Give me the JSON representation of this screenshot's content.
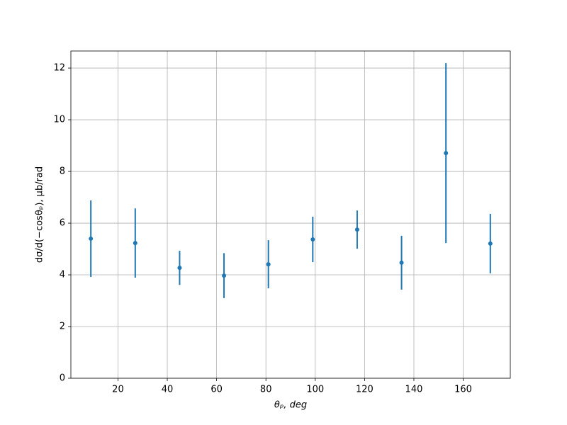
{
  "chart_data": {
    "type": "errorbar",
    "xlabel": "θₚ, deg",
    "ylabel": "dσ/d(−cosθₚ), μb/rad",
    "x": [
      9,
      27,
      45,
      63,
      81,
      99,
      117,
      135,
      153,
      171
    ],
    "values": [
      5.4,
      5.23,
      4.27,
      3.97,
      4.41,
      5.37,
      5.75,
      4.47,
      8.71,
      5.21
    ],
    "errors": [
      1.48,
      1.34,
      0.66,
      0.87,
      0.93,
      0.88,
      0.74,
      1.04,
      3.48,
      1.15
    ],
    "color": "#1f77b4",
    "xlim": [
      0.9,
      179.1
    ],
    "ylim": [
      0,
      12.66
    ],
    "xticks": [
      20,
      40,
      60,
      80,
      100,
      120,
      140,
      160
    ],
    "yticks": [
      0,
      2,
      4,
      6,
      8,
      10,
      12
    ],
    "grid": true
  }
}
